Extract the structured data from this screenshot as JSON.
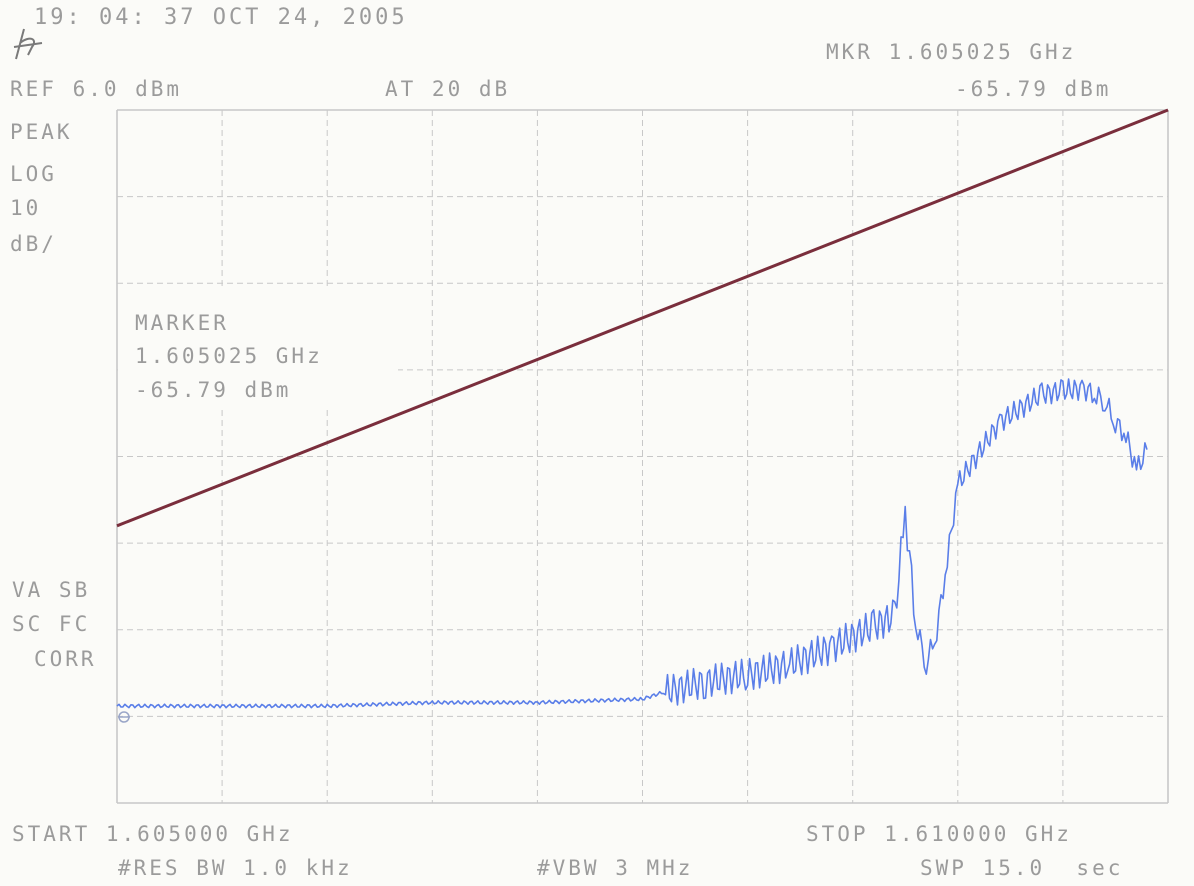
{
  "header": {
    "timestamp": "19: 04: 37 OCT 24, 2005",
    "ref_level": "REF 6.0 dBm",
    "attenuation": "AT 20 dB",
    "marker_freq": "MKR 1.605025 GHz",
    "marker_level": "-65.79 dBm"
  },
  "left_panel": {
    "detector": "PEAK",
    "scale_mode": "LOG",
    "scale_value": "10",
    "scale_unit": "dB/",
    "status_line1": "VA SB",
    "status_line2": "SC FC",
    "status_line3": "CORR"
  },
  "marker_box": {
    "title": "MARKER",
    "freq": "1.605025 GHz",
    "level": "-65.79 dBm"
  },
  "footer": {
    "start": "START 1.605000 GHz",
    "stop": "STOP 1.610000 GHz",
    "rbw": "#RES BW 1.0 kHz",
    "vbw": "#VBW 3 MHz",
    "sweep": "SWP 15.0  sec"
  },
  "colors": {
    "grid": "#c8c8c8",
    "limit_line": "#7a2e3c",
    "trace": "#5a7ee8",
    "text": "#9b9b9b"
  },
  "chart_data": {
    "type": "line",
    "title": "",
    "xlabel": "",
    "ylabel": "",
    "xlim": [
      1.605,
      1.61
    ],
    "ylim": [
      -94,
      6
    ],
    "grid": true,
    "series": [
      {
        "role": "limit line",
        "x": [
          1.605,
          1.61
        ],
        "y": [
          -54,
          6
        ]
      },
      {
        "role": "measured trace",
        "x": [
          1.605,
          1.6055,
          1.606,
          1.6065,
          1.607,
          1.6075,
          1.6076,
          1.6078,
          1.608,
          1.6082,
          1.6084,
          1.6086,
          1.6087,
          1.60875,
          1.6088,
          1.60885,
          1.6089,
          1.60895,
          1.609,
          1.6092,
          1.6094,
          1.6095,
          1.6096,
          1.60965,
          1.6097,
          1.60975,
          1.6098,
          1.60985,
          1.6099
        ],
        "y": [
          -80,
          -80,
          -80,
          -79.5,
          -79.5,
          -79,
          -78,
          -76.5,
          -75.5,
          -74,
          -71.5,
          -68.5,
          -67,
          -52,
          -68,
          -74,
          -69,
          -59,
          -48,
          -39,
          -35,
          -34.5,
          -34.2,
          -35,
          -36,
          -39,
          -41,
          -46,
          -43
        ]
      }
    ]
  }
}
